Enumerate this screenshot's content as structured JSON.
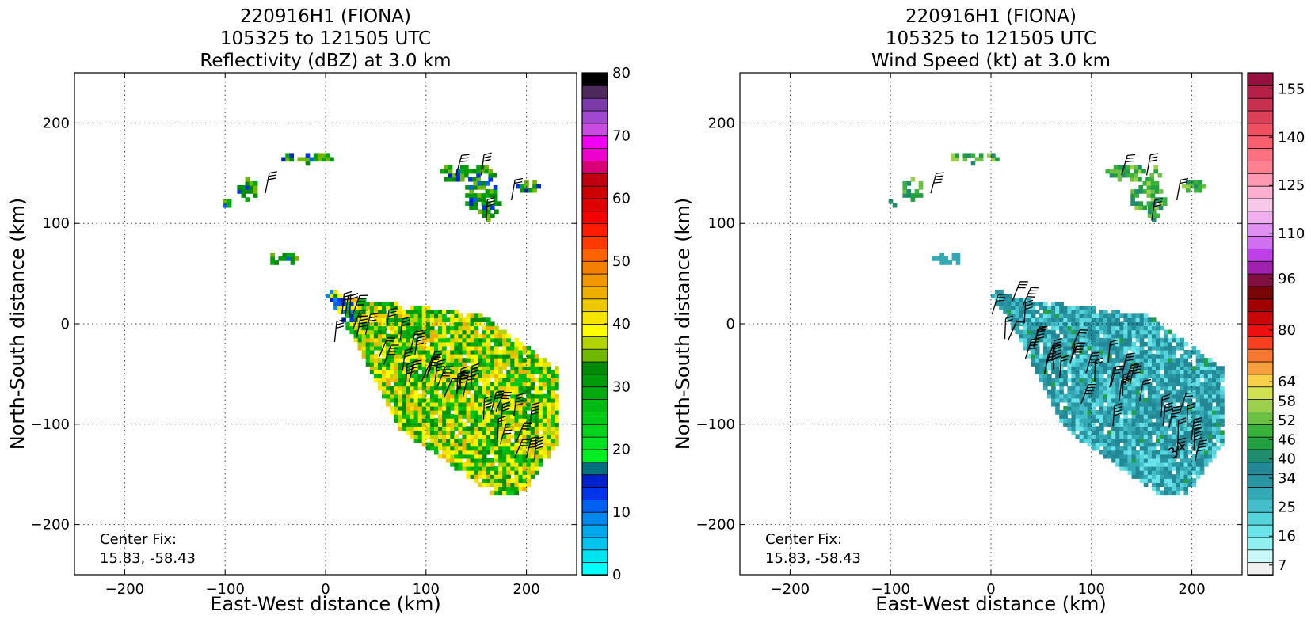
{
  "chart_data": [
    {
      "type": "heatmap",
      "title": [
        "220916H1 (FIONA)",
        "105325 to 121505 UTC",
        "Reflectivity (dBZ) at 3.0 km"
      ],
      "xlabel": "East-West distance (km)",
      "ylabel": "North-South distance (km)",
      "xlim": [
        -250,
        250
      ],
      "ylim": [
        -250,
        250
      ],
      "xticks": [
        -200,
        -100,
        0,
        100,
        200
      ],
      "yticks": [
        -200,
        -100,
        0,
        100,
        200
      ],
      "xtick_labels": [
        "−200",
        "−100",
        "0",
        "100",
        "200"
      ],
      "ytick_labels": [
        "−200",
        "−100",
        "0",
        "100",
        "200"
      ],
      "grid": "dotted",
      "annotation": [
        "Center Fix:",
        "15.83, -58.43"
      ],
      "colorbar": {
        "min": 0,
        "max": 80,
        "tick_values": [
          0,
          10,
          20,
          30,
          40,
          50,
          60,
          70,
          80
        ],
        "tick_labels": [
          "0",
          "10",
          "20",
          "30",
          "40",
          "50",
          "60",
          "70",
          "80"
        ],
        "colors": [
          "#00ffff",
          "#00e3f0",
          "#00c4ee",
          "#00a8ee",
          "#0088ee",
          "#0060f0",
          "#0034ea",
          "#0022cc",
          "#00707e",
          "#00ee20",
          "#00e020",
          "#00d41a",
          "#00c816",
          "#00ba12",
          "#00aa0e",
          "#009a0a",
          "#008a06",
          "#70b800",
          "#b4d400",
          "#ffff00",
          "#f4e400",
          "#ecc800",
          "#eeb000",
          "#f09800",
          "#f48000",
          "#ff6200",
          "#ff3a00",
          "#ff1c00",
          "#f40000",
          "#e00000",
          "#cc0000",
          "#c0000e",
          "#d80074",
          "#ee00cc",
          "#f000f0",
          "#c84ce0",
          "#a048d0",
          "#7c3aa8",
          "#4e2a5c",
          "#000000"
        ]
      },
      "regions": [
        {
          "level": 22,
          "points": [
            [
              -115,
              131
            ],
            [
              -110,
              128
            ],
            [
              -102,
              124
            ],
            [
              -90,
              120
            ],
            [
              -85,
              116
            ],
            [
              -78,
              118
            ],
            [
              -74,
              118
            ]
          ]
        },
        {
          "level": 22,
          "points": [
            [
              -33,
              164
            ],
            [
              -20,
              166
            ],
            [
              -8,
              165
            ],
            [
              4,
              162
            ],
            [
              17,
              161
            ],
            [
              25,
              158
            ],
            [
              29,
              152
            ],
            [
              20,
              150
            ],
            [
              6,
              153
            ]
          ]
        },
        {
          "level": 22,
          "points": [
            [
              -6,
              137
            ],
            [
              -4,
              134
            ]
          ]
        },
        {
          "level": 8,
          "points": [
            [
              -103,
              142
            ]
          ]
        },
        {
          "level": 22,
          "points": [
            [
              -110,
              143
            ],
            [
              -103,
              140
            ]
          ]
        },
        {
          "level": 12,
          "points": [
            [
              -62,
              64
            ],
            [
              -58,
              61
            ],
            [
              -54,
              66
            ],
            [
              -48,
              70
            ],
            [
              -42,
              66
            ],
            [
              -38,
              67
            ],
            [
              -32,
              60
            ],
            [
              -28,
              57
            ]
          ]
        },
        {
          "level": 22,
          "points": [
            [
              105,
              155
            ],
            [
              113,
              160
            ],
            [
              123,
              158
            ],
            [
              134,
              156
            ],
            [
              143,
              152
            ],
            [
              152,
              146
            ],
            [
              160,
              141
            ],
            [
              166,
              135
            ],
            [
              172,
              130
            ],
            [
              180,
              125
            ],
            [
              190,
              120
            ]
          ]
        },
        {
          "level": 12,
          "points": [
            [
              119,
              148
            ],
            [
              134,
              146
            ],
            [
              150,
              143
            ],
            [
              163,
              121
            ],
            [
              180,
              118
            ],
            [
              188,
              116
            ]
          ]
        },
        {
          "level": 22,
          "points": [
            [
              132,
              137
            ],
            [
              140,
              128
            ],
            [
              148,
              118
            ],
            [
              156,
              109
            ],
            [
              164,
              102
            ]
          ]
        },
        {
          "level": 14,
          "points": [
            [
              -8,
              18
            ],
            [
              2,
              14
            ],
            [
              8,
              8
            ],
            [
              14,
              0
            ],
            [
              18,
              -8
            ],
            [
              22,
              -17
            ]
          ]
        },
        {
          "level": 22,
          "points": [
            [
              -2,
              -13
            ],
            [
              8,
              -16
            ]
          ]
        },
        {
          "level": 14,
          "points": [
            [
              0,
              -15
            ],
            [
              10,
              -16
            ]
          ]
        },
        {
          "level": 24,
          "points": [
            [
              10,
              30
            ],
            [
              14,
              24
            ],
            [
              18,
              20
            ],
            [
              24,
              15
            ],
            [
              30,
              10
            ],
            [
              38,
              4
            ],
            [
              46,
              -2
            ],
            [
              54,
              -8
            ],
            [
              62,
              -14
            ],
            [
              70,
              -20
            ],
            [
              78,
              -26
            ],
            [
              86,
              -32
            ],
            [
              94,
              -38
            ],
            [
              102,
              -44
            ],
            [
              110,
              -50
            ],
            [
              118,
              -56
            ],
            [
              126,
              -62
            ],
            [
              134,
              -68
            ],
            [
              142,
              -74
            ],
            [
              150,
              -80
            ],
            [
              158,
              -86
            ],
            [
              166,
              -92
            ],
            [
              174,
              -98
            ],
            [
              182,
              -104
            ],
            [
              190,
              -110
            ],
            [
              198,
              -116
            ],
            [
              206,
              -122
            ],
            [
              214,
              -128
            ]
          ]
        },
        {
          "level": 22,
          "points": [
            [
              120,
              -40
            ],
            [
              130,
              -44
            ],
            [
              140,
              -48
            ],
            [
              150,
              -52
            ],
            [
              160,
              -58
            ],
            [
              172,
              -62
            ],
            [
              184,
              -66
            ],
            [
              196,
              -72
            ],
            [
              208,
              -80
            ],
            [
              216,
              -88
            ],
            [
              222,
              -98
            ],
            [
              224,
              -110
            ],
            [
              218,
              -122
            ]
          ]
        },
        {
          "level": 22,
          "points": [
            [
              64,
              -70
            ],
            [
              70,
              -78
            ],
            [
              80,
              -84
            ],
            [
              90,
              -90
            ],
            [
              100,
              -96
            ],
            [
              110,
              -104
            ],
            [
              120,
              -112
            ],
            [
              130,
              -120
            ],
            [
              140,
              -128
            ],
            [
              150,
              -136
            ],
            [
              160,
              -142
            ],
            [
              172,
              -148
            ],
            [
              184,
              -152
            ],
            [
              196,
              -156
            ],
            [
              206,
              -160
            ]
          ]
        },
        {
          "level": 21,
          "points": [
            [
              30,
              -10
            ],
            [
              46,
              -20
            ],
            [
              62,
              -30
            ],
            [
              78,
              -40
            ],
            [
              90,
              -50
            ],
            [
              100,
              -60
            ],
            [
              110,
              -70
            ],
            [
              124,
              -78
            ],
            [
              136,
              -88
            ],
            [
              150,
              -96
            ],
            [
              166,
              -104
            ],
            [
              182,
              -112
            ],
            [
              196,
              -120
            ]
          ]
        },
        {
          "level": 21,
          "points": [
            [
              40,
              -30
            ],
            [
              56,
              -44
            ],
            [
              72,
              -56
            ],
            [
              90,
              -70
            ],
            [
              108,
              -82
            ],
            [
              124,
              -94
            ],
            [
              140,
              -106
            ],
            [
              156,
              -118
            ],
            [
              172,
              -128
            ],
            [
              188,
              -136
            ]
          ]
        },
        {
          "level": 20,
          "points": [
            [
              24,
              6
            ],
            [
              44,
              -4
            ],
            [
              66,
              -18
            ],
            [
              86,
              -28
            ],
            [
              104,
              -38
            ],
            [
              118,
              -48
            ]
          ]
        },
        {
          "level": 20,
          "points": [
            [
              120,
              -66
            ],
            [
              136,
              -74
            ],
            [
              152,
              -82
            ],
            [
              166,
              -90
            ],
            [
              180,
              -96
            ],
            [
              196,
              -104
            ],
            [
              212,
              -108
            ]
          ]
        },
        {
          "level": 20,
          "points": [
            [
              100,
              -74
            ],
            [
              114,
              -88
            ],
            [
              130,
              -98
            ],
            [
              146,
              -110
            ],
            [
              160,
              -120
            ]
          ]
        },
        {
          "level": 19,
          "points": [
            [
              58,
              -12
            ],
            [
              88,
              -26
            ],
            [
              112,
              -44
            ],
            [
              140,
              -60
            ],
            [
              172,
              -80
            ],
            [
              200,
              -96
            ]
          ]
        },
        {
          "level": 12,
          "points": [
            [
              4,
              -40
            ],
            [
              8,
              -46
            ],
            [
              12,
              -48
            ]
          ]
        },
        {
          "level": 22,
          "points": [
            [
              60,
              -90
            ],
            [
              64,
              -94
            ]
          ]
        }
      ],
      "barbs_note": "wind barbs overlay"
    },
    {
      "type": "heatmap",
      "title": [
        "220916H1 (FIONA)",
        "105325 to 121505 UTC",
        "Wind Speed (kt) at 3.0 km"
      ],
      "xlabel": "East-West distance (km)",
      "ylabel": "North-South distance (km)",
      "xlim": [
        -250,
        250
      ],
      "ylim": [
        -250,
        250
      ],
      "xticks": [
        -200,
        -100,
        0,
        100,
        200
      ],
      "yticks": [
        -200,
        -100,
        0,
        100,
        200
      ],
      "xtick_labels": [
        "−200",
        "−100",
        "0",
        "100",
        "200"
      ],
      "ytick_labels": [
        "−200",
        "−100",
        "0",
        "100",
        "200"
      ],
      "grid": "dotted",
      "annotation": [
        "Center Fix:",
        "15.83, -58.43"
      ],
      "contour_label": "34",
      "colorbar": {
        "min": 4,
        "max": 160,
        "tick_values": [
          7,
          16,
          25,
          34,
          40,
          46,
          52,
          58,
          64,
          80,
          96,
          110,
          125,
          140,
          155
        ],
        "tick_labels": [
          "7",
          "16",
          "25",
          "34",
          "40",
          "46",
          "52",
          "58",
          "64",
          "80",
          "96",
          "110",
          "125",
          "140",
          "155"
        ],
        "colors": [
          "#f0f0f0",
          "#c8f8f8",
          "#90f0f0",
          "#6ae4e8",
          "#56d4dc",
          "#44bec8",
          "#34a8b4",
          "#2a96a4",
          "#228896",
          "#208c6e",
          "#22a040",
          "#38b23c",
          "#6cc044",
          "#9cd04c",
          "#d0e050",
          "#f8d04c",
          "#f8a040",
          "#f87832",
          "#f84020",
          "#ee1010",
          "#c80808",
          "#a00000",
          "#780808",
          "#801040",
          "#a020b0",
          "#c040e8",
          "#d070f0",
          "#e090f0",
          "#f0b0f0",
          "#f8c8e8",
          "#ffb0d0",
          "#ff98b0",
          "#ff8090",
          "#ff7080",
          "#f86070",
          "#ee5060",
          "#dc4058",
          "#c83050",
          "#b42048",
          "#981040"
        ]
      },
      "regions": [
        {
          "level": 12,
          "points": [
            [
              -80,
              150
            ]
          ]
        }
      ],
      "barbs_note": "wind barbs overlay"
    }
  ]
}
